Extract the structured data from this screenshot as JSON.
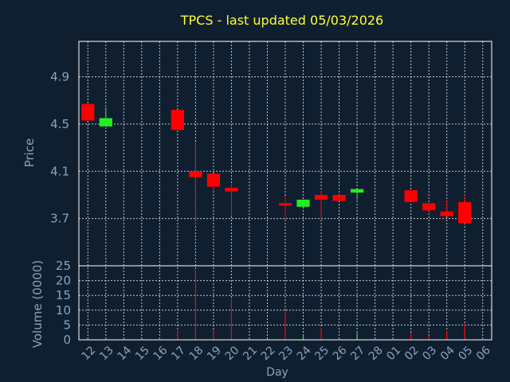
{
  "colors": {
    "background": "#0f1f30",
    "title": "#ffff33",
    "axis_text": "#8aa2bf",
    "grid": "#ffffff",
    "axis_line": "#ffffff",
    "up": "#22ee22",
    "down": "#ff0000"
  },
  "chart_data": {
    "type": "candlestick",
    "title": "TPCS - last updated 05/03/2026",
    "xlabel": "Day",
    "ylabel": "Price",
    "volume_label": "Volume (0000)",
    "ylim": [
      3.3,
      5.2
    ],
    "yticks": [
      "4.9",
      "4.5",
      "4.1",
      "3.7"
    ],
    "volume_ylim": [
      0,
      25
    ],
    "volume_ticks": [
      "25",
      "20",
      "15",
      "10",
      "5",
      "0"
    ],
    "grid": true,
    "x_labels": [
      "12",
      "13",
      "14",
      "15",
      "16",
      "17",
      "18",
      "19",
      "20",
      "21",
      "22",
      "23",
      "24",
      "25",
      "26",
      "27",
      "28",
      "01",
      "02",
      "03",
      "04",
      "05",
      "06"
    ],
    "candles": [
      {
        "x": "12",
        "open": 4.67,
        "high": 4.67,
        "low": 4.53,
        "close": 4.53,
        "volume": 0.3
      },
      {
        "x": "13",
        "open": 4.48,
        "high": 4.64,
        "low": 4.48,
        "close": 4.55,
        "volume": 0.2
      },
      {
        "x": "17",
        "open": 4.62,
        "high": 4.62,
        "low": 4.45,
        "close": 4.45,
        "volume": 3.2
      },
      {
        "x": "18",
        "open": 4.1,
        "high": 4.35,
        "low": 3.65,
        "close": 4.05,
        "volume": 23.5
      },
      {
        "x": "19",
        "open": 4.08,
        "high": 4.08,
        "low": 3.93,
        "close": 3.97,
        "volume": 3.5
      },
      {
        "x": "20",
        "open": 3.96,
        "high": 3.99,
        "low": 3.72,
        "close": 3.93,
        "volume": 14.0
      },
      {
        "x": "23",
        "open": 3.83,
        "high": 3.89,
        "low": 3.69,
        "close": 3.81,
        "volume": 10.0
      },
      {
        "x": "24",
        "open": 3.8,
        "high": 3.86,
        "low": 3.8,
        "close": 3.86,
        "volume": 1.8
      },
      {
        "x": "25",
        "open": 3.9,
        "high": 3.94,
        "low": 3.7,
        "close": 3.86,
        "volume": 4.0
      },
      {
        "x": "26",
        "open": 3.9,
        "high": 3.9,
        "low": 3.85,
        "close": 3.85,
        "volume": 0.3
      },
      {
        "x": "27",
        "open": 3.92,
        "high": 3.95,
        "low": 3.86,
        "close": 3.95,
        "volume": 2.3
      },
      {
        "x": "02",
        "open": 3.94,
        "high": 3.94,
        "low": 3.84,
        "close": 3.84,
        "volume": 2.4
      },
      {
        "x": "03",
        "open": 3.83,
        "high": 3.83,
        "low": 3.74,
        "close": 3.77,
        "volume": 1.5
      },
      {
        "x": "04",
        "open": 3.76,
        "high": 3.86,
        "low": 3.72,
        "close": 3.72,
        "volume": 3.0
      },
      {
        "x": "05",
        "open": 3.84,
        "high": 3.9,
        "low": 3.66,
        "close": 3.66,
        "volume": 5.5
      }
    ]
  }
}
